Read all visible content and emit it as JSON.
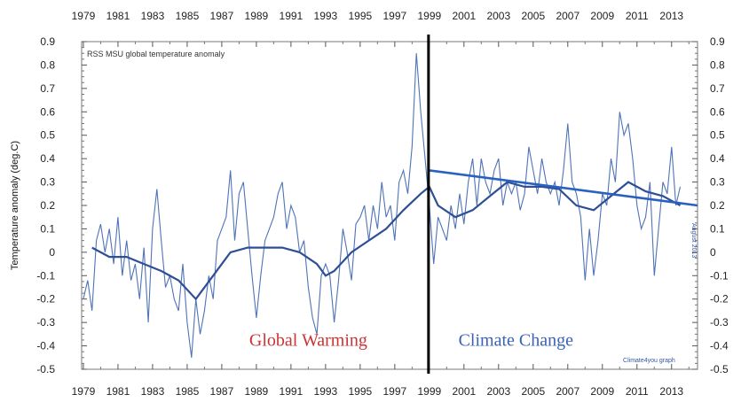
{
  "chart_data": {
    "type": "line",
    "title": "RSS MSU global temperature anomaly",
    "ylabel": "Temperature anomaly (deg.C)",
    "xlabel": "",
    "xlim": [
      1978.9,
      2014.5
    ],
    "ylim": [
      -0.5,
      0.9
    ],
    "x_ticks": [
      1979,
      1981,
      1983,
      1985,
      1987,
      1989,
      1991,
      1993,
      1995,
      1997,
      1999,
      2001,
      2003,
      2005,
      2007,
      2009,
      2011,
      2013
    ],
    "y_ticks": [
      -0.5,
      -0.4,
      -0.3,
      -0.2,
      -0.1,
      0,
      0.1,
      0.2,
      0.3,
      0.4,
      0.5,
      0.6,
      0.7,
      0.8,
      0.9
    ],
    "y_tick_labels": [
      "-0.5",
      "-0.4",
      "-0.3",
      "-0.2",
      "-0.1",
      "0",
      "0.1",
      "0.2",
      "0.3",
      "0.4",
      "0.5",
      "0.6",
      "0.7",
      "0.8",
      "0.9"
    ],
    "grid": false,
    "series": [
      {
        "kind": "monthly",
        "color": "#4f73b8",
        "x": [
          1979.0,
          1979.25,
          1979.5,
          1979.75,
          1980.0,
          1980.25,
          1980.5,
          1980.75,
          1981.0,
          1981.25,
          1981.5,
          1981.75,
          1982.0,
          1982.25,
          1982.5,
          1982.75,
          1983.0,
          1983.25,
          1983.5,
          1983.75,
          1984.0,
          1984.25,
          1984.5,
          1984.75,
          1985.0,
          1985.25,
          1985.5,
          1985.75,
          1986.0,
          1986.25,
          1986.5,
          1986.75,
          1987.0,
          1987.25,
          1987.5,
          1987.75,
          1988.0,
          1988.25,
          1988.5,
          1988.75,
          1989.0,
          1989.25,
          1989.5,
          1989.75,
          1990.0,
          1990.25,
          1990.5,
          1990.75,
          1991.0,
          1991.25,
          1991.5,
          1991.75,
          1992.0,
          1992.25,
          1992.5,
          1992.75,
          1993.0,
          1993.25,
          1993.5,
          1993.75,
          1994.0,
          1994.25,
          1994.5,
          1994.75,
          1995.0,
          1995.25,
          1995.5,
          1995.75,
          1996.0,
          1996.25,
          1996.5,
          1996.75,
          1997.0,
          1997.25,
          1997.5,
          1997.75,
          1998.0,
          1998.25,
          1998.5,
          1998.75,
          1999.0,
          1999.25,
          1999.5,
          1999.75,
          2000.0,
          2000.25,
          2000.5,
          2000.75,
          2001.0,
          2001.25,
          2001.5,
          2001.75,
          2002.0,
          2002.25,
          2002.5,
          2002.75,
          2003.0,
          2003.25,
          2003.5,
          2003.75,
          2004.0,
          2004.25,
          2004.5,
          2004.75,
          2005.0,
          2005.25,
          2005.5,
          2005.75,
          2006.0,
          2006.25,
          2006.5,
          2006.75,
          2007.0,
          2007.25,
          2007.5,
          2007.75,
          2008.0,
          2008.25,
          2008.5,
          2008.75,
          2009.0,
          2009.25,
          2009.5,
          2009.75,
          2010.0,
          2010.25,
          2010.5,
          2010.75,
          2011.0,
          2011.25,
          2011.5,
          2011.75,
          2012.0,
          2012.25,
          2012.5,
          2012.75,
          2013.0,
          2013.25,
          2013.5
        ],
        "y": [
          -0.2,
          -0.12,
          -0.25,
          0.05,
          0.12,
          0.0,
          0.1,
          -0.05,
          0.15,
          -0.1,
          0.05,
          -0.12,
          -0.05,
          -0.2,
          0.02,
          -0.3,
          0.1,
          0.27,
          0.05,
          -0.15,
          -0.1,
          -0.2,
          -0.25,
          -0.05,
          -0.3,
          -0.45,
          -0.2,
          -0.35,
          -0.25,
          -0.1,
          -0.2,
          0.05,
          0.1,
          0.15,
          0.35,
          0.05,
          0.25,
          0.3,
          0.1,
          -0.1,
          -0.28,
          -0.1,
          0.05,
          0.1,
          0.15,
          0.25,
          0.3,
          0.1,
          0.2,
          0.15,
          0.0,
          0.05,
          -0.15,
          -0.28,
          -0.35,
          -0.1,
          -0.05,
          -0.1,
          -0.3,
          -0.12,
          0.1,
          0.0,
          -0.12,
          0.12,
          0.15,
          0.2,
          0.05,
          0.2,
          0.1,
          0.3,
          0.15,
          0.2,
          0.05,
          0.3,
          0.35,
          0.25,
          0.45,
          0.85,
          0.6,
          0.4,
          0.2,
          -0.05,
          0.15,
          0.1,
          0.05,
          0.2,
          0.1,
          0.25,
          0.12,
          0.3,
          0.4,
          0.2,
          0.4,
          0.3,
          0.25,
          0.35,
          0.4,
          0.2,
          0.3,
          0.25,
          0.3,
          0.18,
          0.25,
          0.45,
          0.35,
          0.25,
          0.4,
          0.3,
          0.25,
          0.3,
          0.2,
          0.35,
          0.55,
          0.3,
          0.25,
          0.15,
          -0.12,
          0.1,
          -0.1,
          0.05,
          0.25,
          0.2,
          0.4,
          0.3,
          0.6,
          0.5,
          0.55,
          0.4,
          0.2,
          0.1,
          0.15,
          0.3,
          -0.1,
          0.1,
          0.3,
          0.25,
          0.45,
          0.2,
          0.28
        ]
      },
      {
        "kind": "running-mean",
        "color": "#2e4f96",
        "x": [
          1979.5,
          1980.5,
          1981.5,
          1982.5,
          1983.5,
          1984.5,
          1985.5,
          1986.5,
          1987.5,
          1988.5,
          1989.5,
          1990.5,
          1991.5,
          1992.5,
          1993.0,
          1993.5,
          1994.5,
          1995.5,
          1996.5,
          1997.5,
          1998.5,
          1999.0,
          1999.5,
          2000.5,
          2001.5,
          2002.5,
          2003.5,
          2004.5,
          2005.5,
          2006.5,
          2007.5,
          2008.5,
          2009.5,
          2010.5,
          2011.5,
          2012.5,
          2013.5
        ],
        "y": [
          0.02,
          -0.02,
          -0.02,
          -0.05,
          -0.08,
          -0.12,
          -0.2,
          -0.1,
          0.0,
          0.02,
          0.02,
          0.02,
          0.0,
          -0.05,
          -0.1,
          -0.08,
          0.0,
          0.05,
          0.1,
          0.18,
          0.25,
          0.28,
          0.2,
          0.15,
          0.18,
          0.24,
          0.3,
          0.28,
          0.28,
          0.27,
          0.2,
          0.18,
          0.24,
          0.3,
          0.26,
          0.24,
          0.2
        ]
      },
      {
        "kind": "trend-1999-2014",
        "color": "#2a61c0",
        "x": [
          1999.0,
          2014.5
        ],
        "y": [
          0.35,
          0.2
        ]
      }
    ],
    "annotations": [
      {
        "text": "Global Warming",
        "x": 1992.0,
        "y": -0.4,
        "color": "#cc3333"
      },
      {
        "text": "Climate Change",
        "x": 2004.0,
        "y": -0.4,
        "color": "#3a63b8"
      },
      {
        "text": "Climate4you graph",
        "x": 2011.7,
        "y": -0.47,
        "color": "#3355aa"
      },
      {
        "text": "August 2013",
        "x": 2014.2,
        "y": 0.05,
        "color": "#3355aa",
        "orientation": "vertical"
      }
    ],
    "divider": {
      "x": 1998.95,
      "color": "#000000"
    }
  }
}
